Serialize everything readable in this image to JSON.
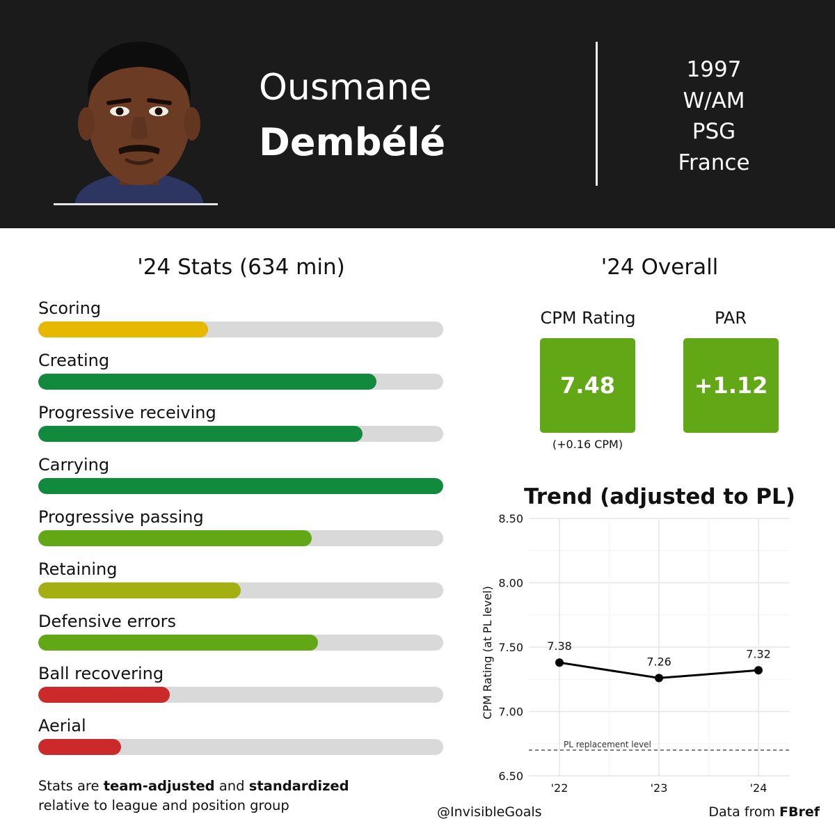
{
  "header": {
    "first_name": "Ousmane",
    "last_name": "Dembélé",
    "birth_year": "1997",
    "position": "W/AM",
    "club": "PSG",
    "country": "France"
  },
  "stats": {
    "title": "'24 Stats (634 min)",
    "items": [
      {
        "label": "Scoring",
        "value": 0.42,
        "color": "#e6b800"
      },
      {
        "label": "Creating",
        "value": 0.835,
        "color": "#128a3e"
      },
      {
        "label": "Progressive receiving",
        "value": 0.8,
        "color": "#128a3e"
      },
      {
        "label": "Carrying",
        "value": 1.0,
        "color": "#128a3e"
      },
      {
        "label": "Progressive passing",
        "value": 0.675,
        "color": "#62a716"
      },
      {
        "label": "Retaining",
        "value": 0.5,
        "color": "#a3b011"
      },
      {
        "label": "Defensive errors",
        "value": 0.69,
        "color": "#62a716"
      },
      {
        "label": "Ball recovering",
        "value": 0.325,
        "color": "#cc2a2a"
      },
      {
        "label": "Aerial",
        "value": 0.205,
        "color": "#cc2a2a"
      }
    ],
    "note_part1": "Stats are ",
    "note_bold1": "team-adjusted",
    "note_part2": " and ",
    "note_bold2": "standardized",
    "note_line2": "relative to league and position group"
  },
  "overall": {
    "title": "'24 Overall",
    "cpm_label": "CPM Rating",
    "cpm_value": "7.48",
    "cpm_sub": "(+0.16 CPM)",
    "par_label": "PAR",
    "par_value": "+1.12",
    "box_color": "#62a716"
  },
  "chart_data": {
    "type": "line",
    "title": "Trend (adjusted to PL)",
    "ylabel": "CPM Rating (at PL level)",
    "xlabel": "",
    "x": [
      "'22",
      "'23",
      "'24"
    ],
    "y": [
      7.38,
      7.26,
      7.32
    ],
    "data_labels": [
      "7.38",
      "7.26",
      "7.32"
    ],
    "yticks": [
      6.5,
      7.0,
      7.5,
      8.0,
      8.5
    ],
    "ytick_labels": [
      "6.50",
      "7.00",
      "7.50",
      "8.00",
      "8.50"
    ],
    "ylim": [
      6.5,
      8.5
    ],
    "reference_line": {
      "value": 6.7,
      "label": "PL replacement level"
    },
    "grid": true
  },
  "footer": {
    "handle": "@InvisibleGoals",
    "source_prefix": "Data from ",
    "source_bold": "FBref"
  }
}
